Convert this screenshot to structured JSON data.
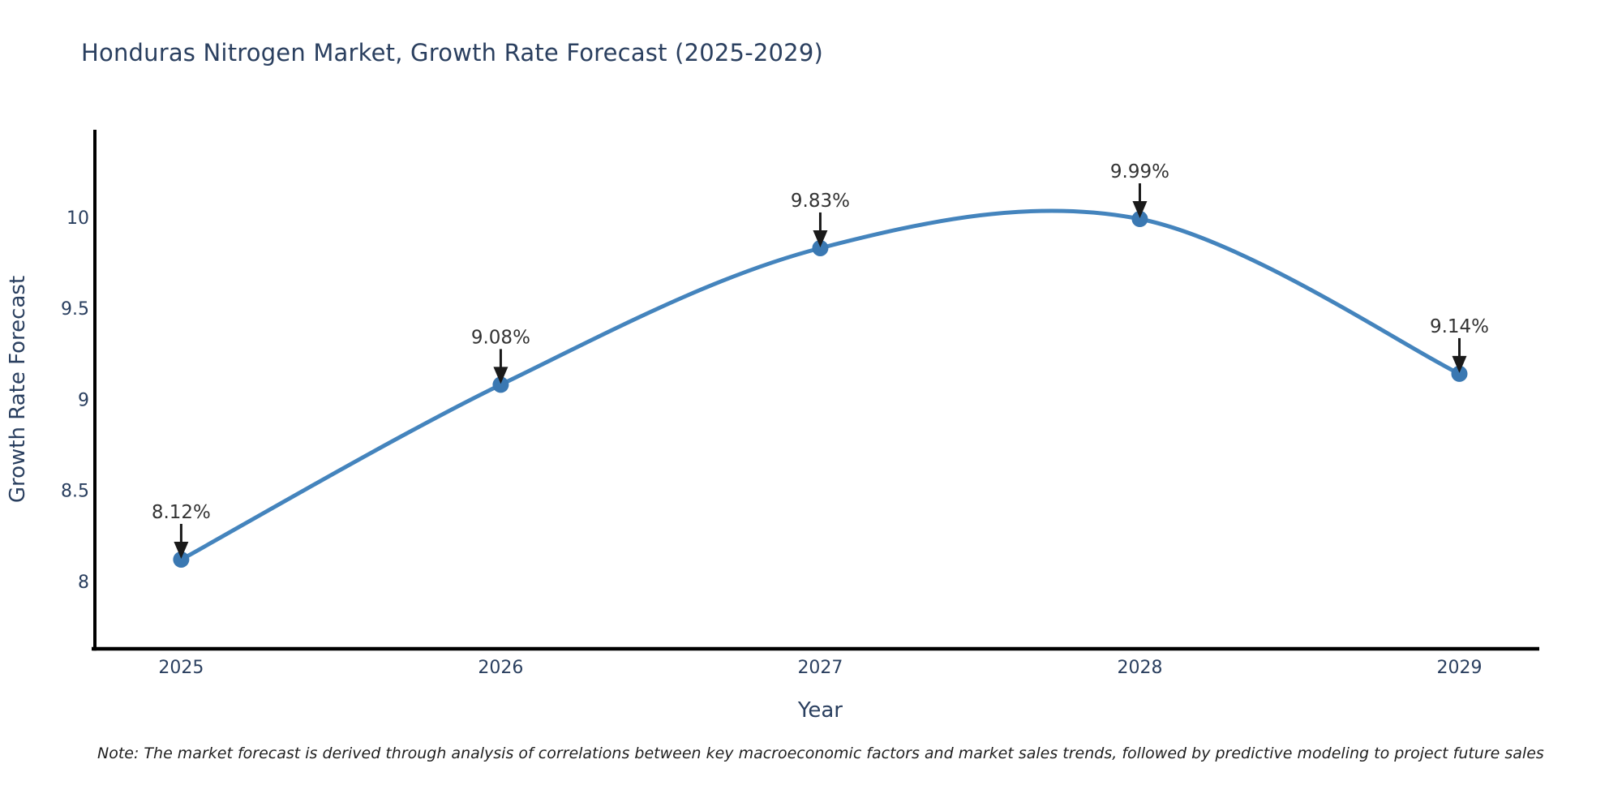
{
  "title": "Honduras Nitrogen Market, Growth Rate Forecast (2025-2029)",
  "note": "Note: The market forecast is derived through analysis of correlations between key macroeconomic factors and market sales trends, followed by predictive modeling to project future sales",
  "colors": {
    "line": "#4484bd",
    "marker": "#3a78b2",
    "axis": "#000000",
    "axis_text": "#2a3f5f",
    "annotation_text": "#333333",
    "arrow": "#1a1a1a",
    "title_text": "#2a3f5f",
    "background": "#ffffff"
  },
  "chart_data": {
    "type": "line",
    "line_shape": "spline",
    "title": "Honduras Nitrogen Market, Growth Rate Forecast (2025-2029)",
    "xlabel": "Year",
    "ylabel": "Growth Rate Forecast",
    "x": [
      2025,
      2026,
      2027,
      2028,
      2029
    ],
    "y": [
      8.12,
      9.08,
      9.83,
      9.99,
      9.14
    ],
    "point_labels": [
      "8.12%",
      "9.08%",
      "9.83%",
      "9.99%",
      "9.14%"
    ],
    "xticks": [
      "2025",
      "2026",
      "2027",
      "2028",
      "2029"
    ],
    "xtick_values": [
      2025,
      2026,
      2027,
      2028,
      2029
    ],
    "yticks": [
      "8",
      "8.5",
      "9",
      "9.5",
      "10"
    ],
    "ytick_values": [
      8,
      8.5,
      9,
      9.5,
      10
    ],
    "xlim": [
      2024.73,
      2029.25
    ],
    "ylim": [
      7.63,
      10.48
    ],
    "grid": false,
    "legend_position": "none",
    "markers": true
  }
}
